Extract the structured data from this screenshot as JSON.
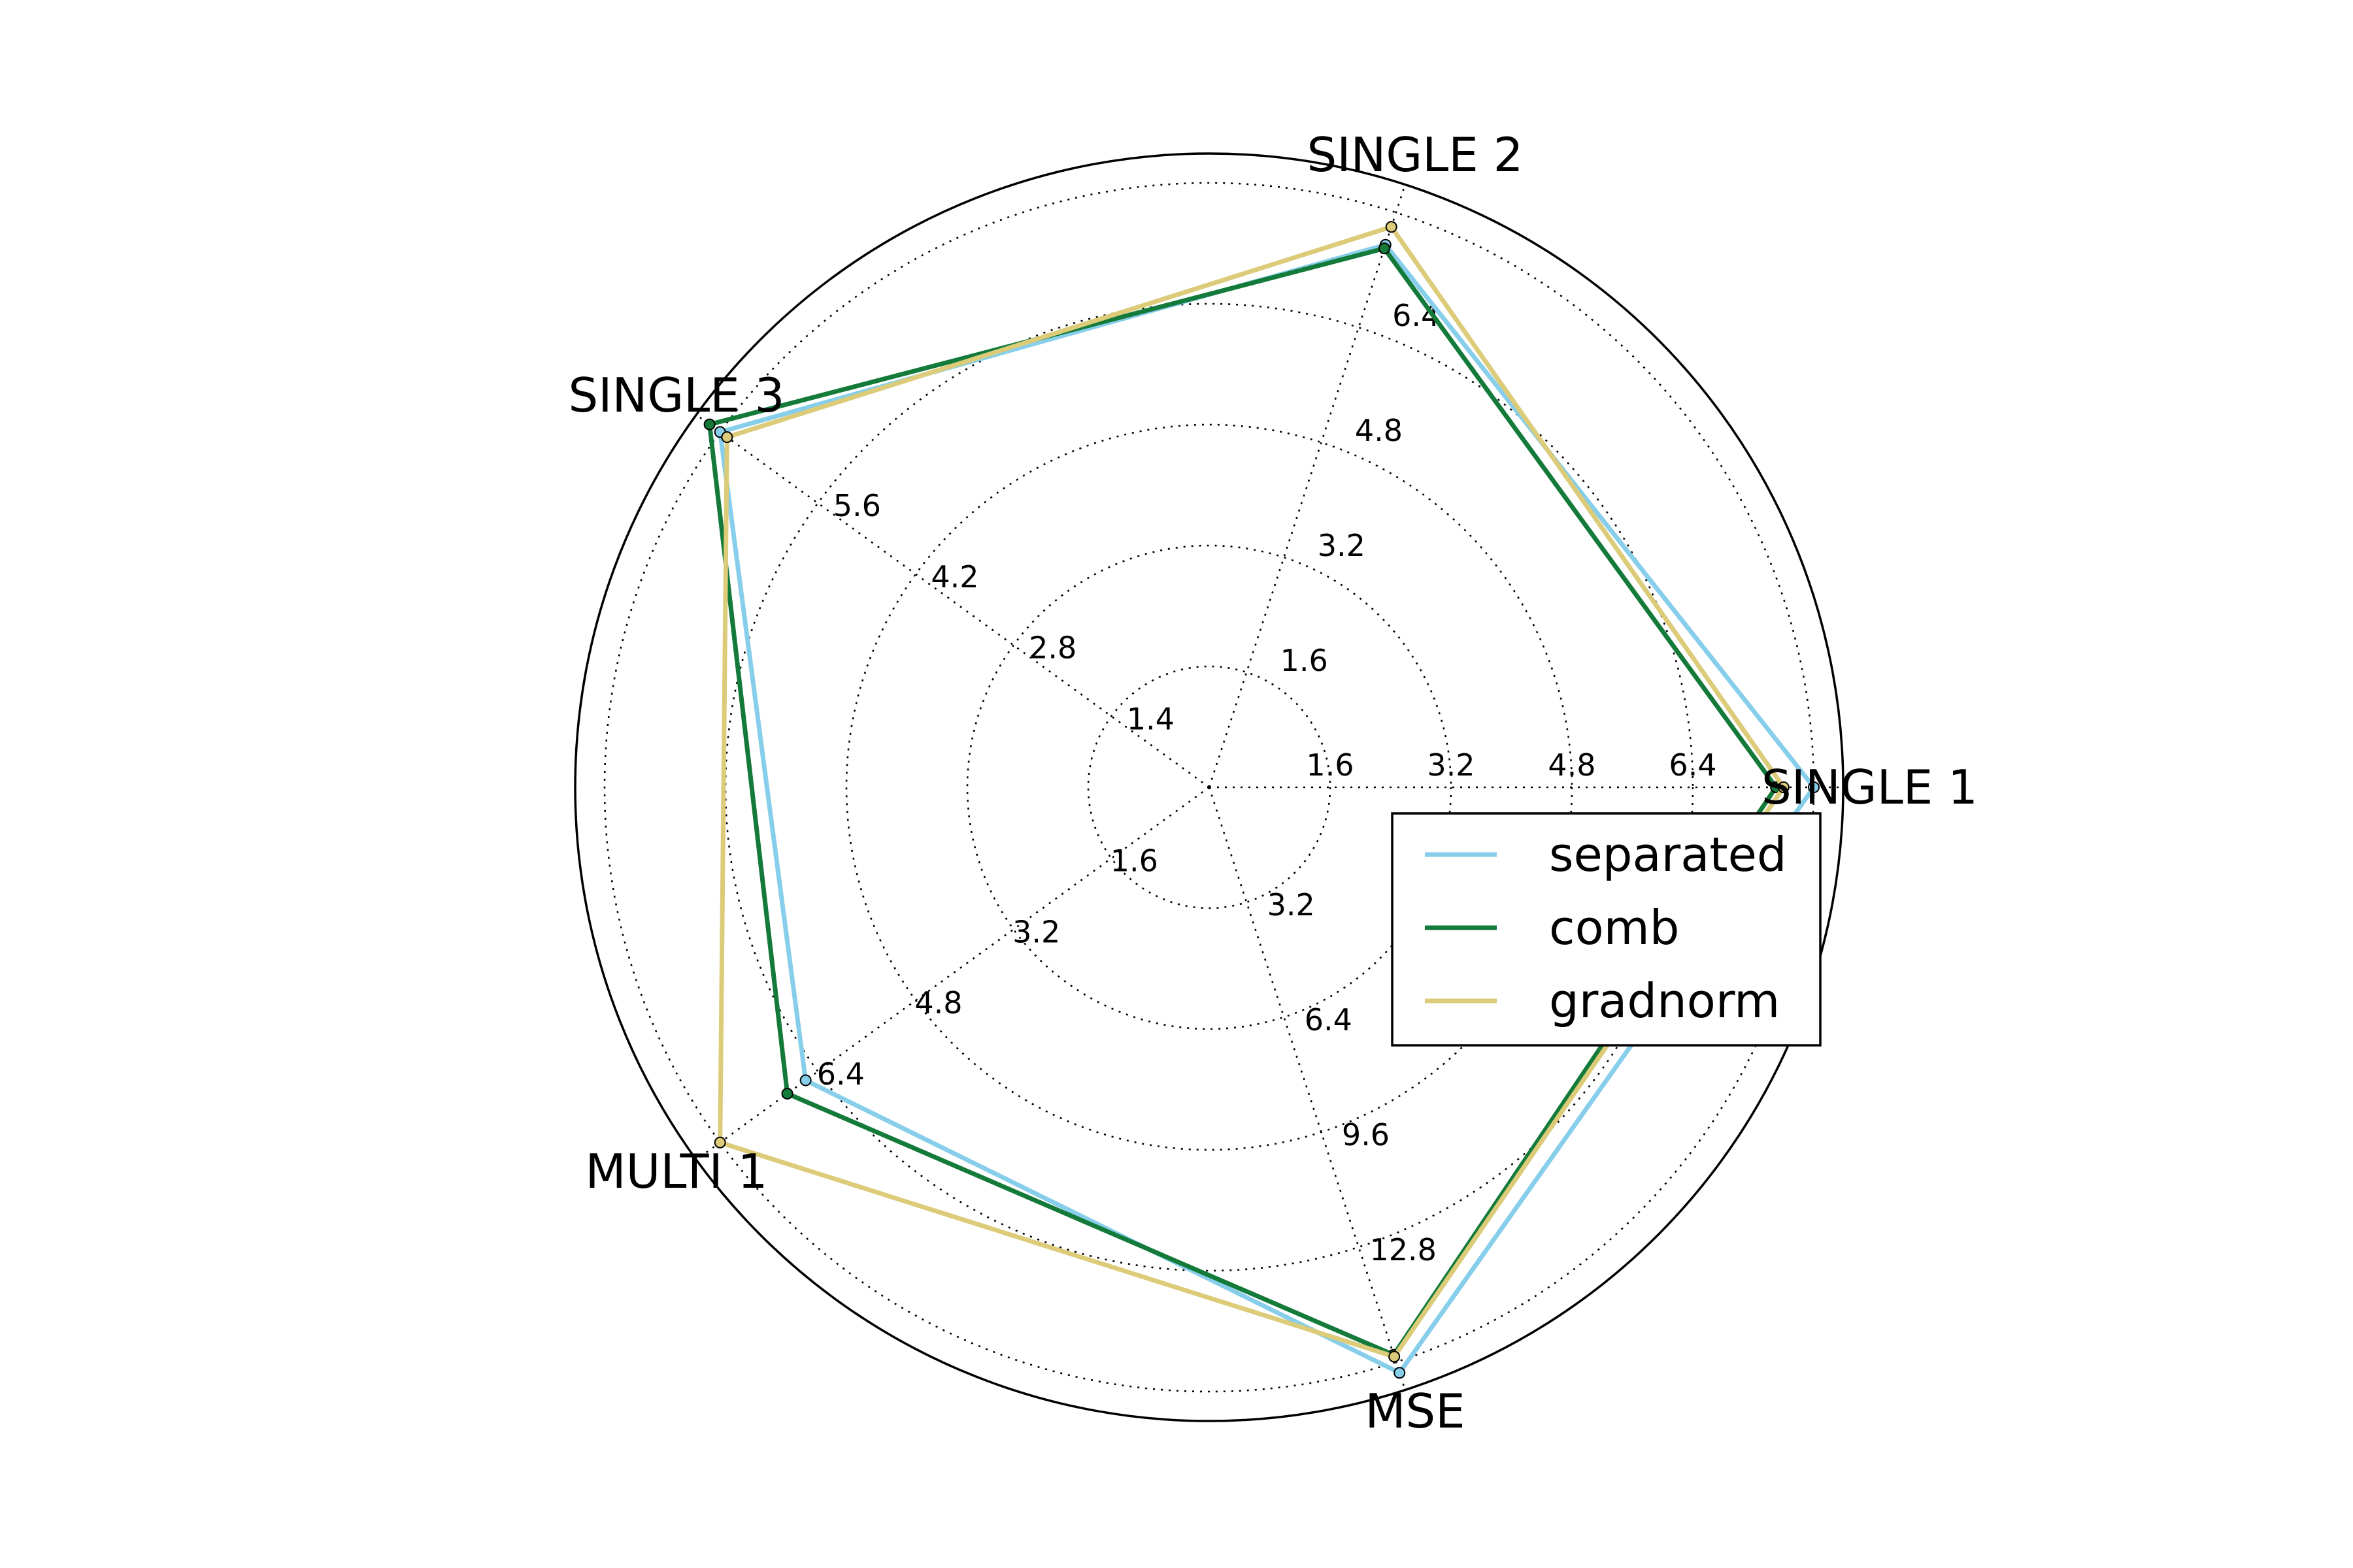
{
  "chart_data": {
    "type": "radar",
    "title": "",
    "axes": [
      {
        "name": "SINGLE 1",
        "ticks": [
          "1.6",
          "3.2",
          "4.8",
          "6.4"
        ]
      },
      {
        "name": "SINGLE 2",
        "ticks": [
          "1.6",
          "3.2",
          "4.8",
          "6.4"
        ]
      },
      {
        "name": "SINGLE 3",
        "ticks": [
          "1.4",
          "2.8",
          "4.2",
          "5.6"
        ]
      },
      {
        "name": "MULTI 1",
        "ticks": [
          "1.6",
          "3.2",
          "4.8",
          "6.4"
        ]
      },
      {
        "name": "MSE",
        "ticks": [
          "3.2",
          "6.4",
          "9.6",
          "12.8"
        ]
      }
    ],
    "series": [
      {
        "name": "separated",
        "color": "#87ceeb",
        "values": [
          8.0,
          7.55,
          7.0,
          6.6,
          16.3
        ]
      },
      {
        "name": "comb",
        "color": "#147a3a",
        "values": [
          7.5,
          7.5,
          7.15,
          6.9,
          15.8
        ]
      },
      {
        "name": "gradnorm",
        "color": "#dccb78",
        "values": [
          7.6,
          7.8,
          6.9,
          8.0,
          15.85
        ]
      }
    ],
    "legend_position": "right"
  }
}
